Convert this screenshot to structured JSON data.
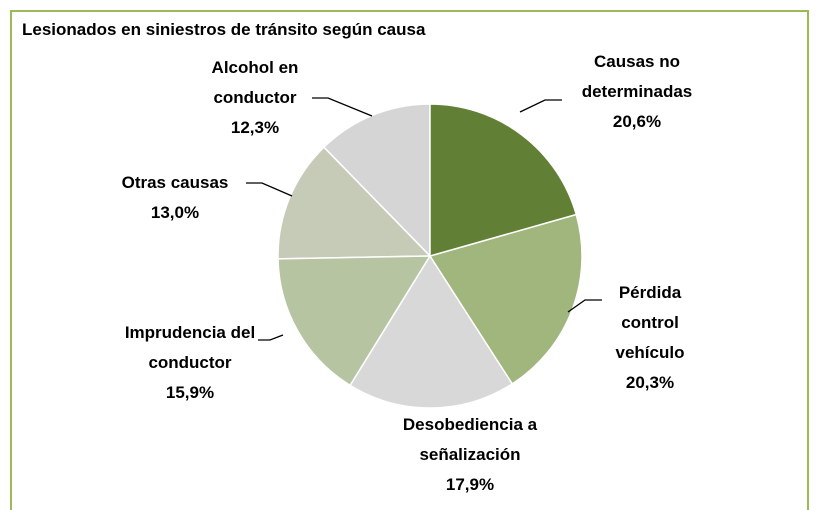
{
  "chart_data": {
    "type": "pie",
    "title": "Lesionados en siniestros de tránsito según causa",
    "categories": [
      "Causas no determinadas",
      "Pérdida control vehículo",
      "Desobediencia a señalización",
      "Imprudencia del conductor",
      "Otras causas",
      "Alcohol en conductor"
    ],
    "values": [
      20.6,
      20.3,
      17.9,
      15.9,
      13.0,
      12.3
    ],
    "value_labels": [
      "20,6%",
      "20,3%",
      "17,9%",
      "15,9%",
      "13,0%",
      "12,3%"
    ],
    "colors": [
      "#617f35",
      "#a0b67c",
      "#d8d8d8",
      "#b7c4a2",
      "#c6cbb7",
      "#d5d5d5"
    ]
  }
}
